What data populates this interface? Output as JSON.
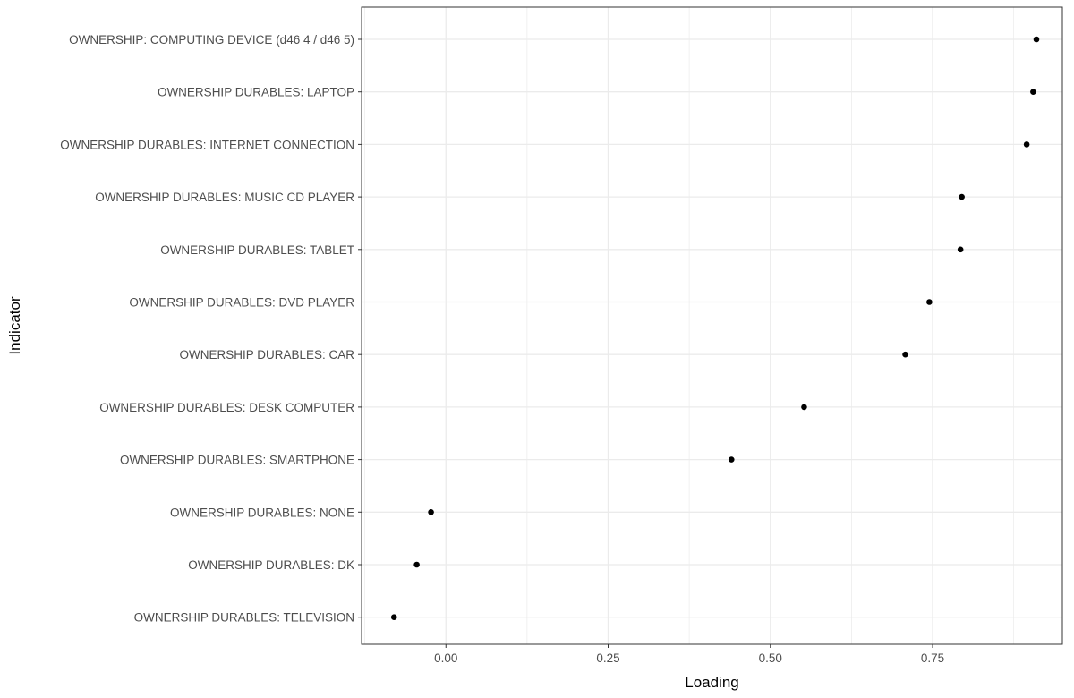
{
  "chart_data": {
    "type": "scatter",
    "title": "",
    "xlabel": "Loading",
    "ylabel": "Indicator",
    "xlim": [
      -0.13,
      0.95
    ],
    "x_ticks": [
      0.0,
      0.25,
      0.5,
      0.75
    ],
    "x_tick_labels": [
      "0.00",
      "0.25",
      "0.50",
      "0.75"
    ],
    "grid": true,
    "legend": "none",
    "categories": [
      "OWNERSHIP: COMPUTING DEVICE (d46 4 / d46 5)",
      "OWNERSHIP DURABLES: LAPTOP",
      "OWNERSHIP DURABLES: INTERNET CONNECTION",
      "OWNERSHIP DURABLES: MUSIC CD PLAYER",
      "OWNERSHIP DURABLES: TABLET",
      "OWNERSHIP DURABLES: DVD PLAYER",
      "OWNERSHIP DURABLES: CAR",
      "OWNERSHIP DURABLES: DESK COMPUTER",
      "OWNERSHIP DURABLES: SMARTPHONE",
      "OWNERSHIP DURABLES: NONE",
      "OWNERSHIP DURABLES: DK",
      "OWNERSHIP DURABLES: TELEVISION"
    ],
    "values": [
      0.91,
      0.905,
      0.895,
      0.795,
      0.793,
      0.745,
      0.708,
      0.552,
      0.44,
      -0.023,
      -0.045,
      -0.08
    ],
    "colors": {
      "point": "#000000",
      "grid": "#ebebeb",
      "panel_border": "#333333",
      "tick_text": "#4d4d4d"
    }
  }
}
